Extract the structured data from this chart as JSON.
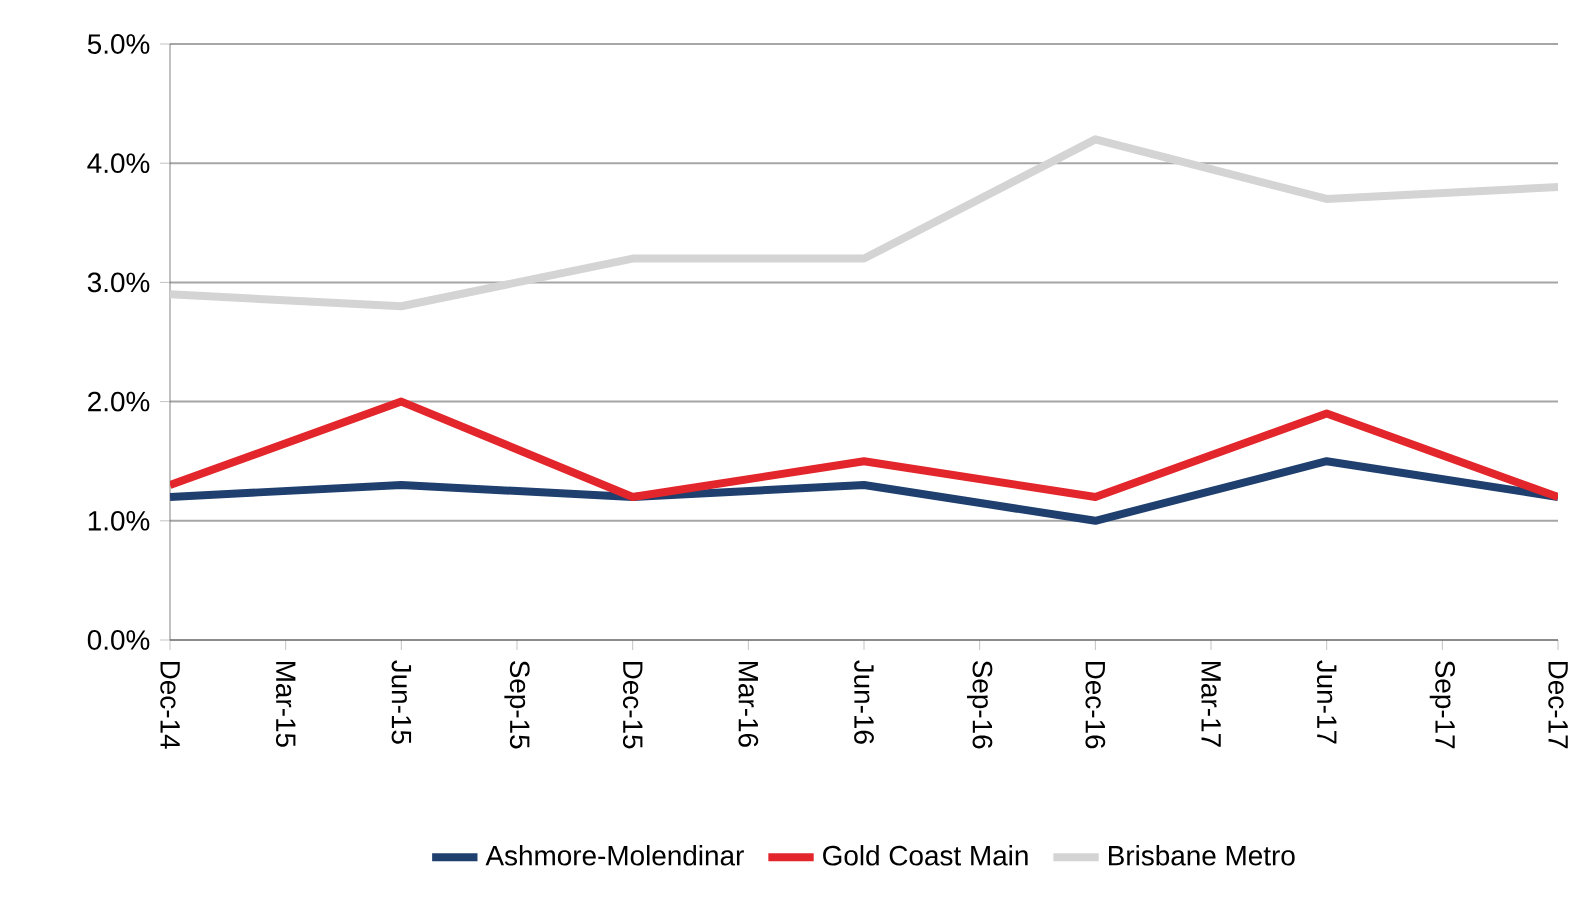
{
  "chart_data": {
    "type": "line",
    "x": [
      "2014-12",
      "2015-06",
      "2015-12",
      "2016-06",
      "2016-12",
      "2017-06",
      "2017-12"
    ],
    "series": [
      {
        "name": "Ashmore-Molendinar",
        "color": "#1f3f6e",
        "values": [
          1.2,
          1.3,
          1.2,
          1.3,
          1.0,
          1.5,
          1.2
        ]
      },
      {
        "name": "Gold Coast Main",
        "color": "#e3262b",
        "values": [
          1.3,
          2.0,
          1.2,
          1.5,
          1.2,
          1.9,
          1.2
        ]
      },
      {
        "name": "Brisbane Metro",
        "color": "#d4d4d4",
        "values": [
          2.9,
          2.8,
          3.2,
          3.2,
          4.2,
          3.7,
          3.8
        ]
      }
    ],
    "xlim": [
      "2014-12",
      "2017-12"
    ],
    "xticks": [
      {
        "value": "2014-12",
        "label": "Dec-14"
      },
      {
        "value": "2015-03",
        "label": "Mar-15"
      },
      {
        "value": "2015-06",
        "label": "Jun-15"
      },
      {
        "value": "2015-09",
        "label": "Sep-15"
      },
      {
        "value": "2015-12",
        "label": "Dec-15"
      },
      {
        "value": "2016-03",
        "label": "Mar-16"
      },
      {
        "value": "2016-06",
        "label": "Jun-16"
      },
      {
        "value": "2016-09",
        "label": "Sep-16"
      },
      {
        "value": "2016-12",
        "label": "Dec-16"
      },
      {
        "value": "2017-03",
        "label": "Mar-17"
      },
      {
        "value": "2017-06",
        "label": "Jun-17"
      },
      {
        "value": "2017-09",
        "label": "Sep-17"
      },
      {
        "value": "2017-12",
        "label": "Dec-17"
      }
    ],
    "ylim": [
      0,
      5
    ],
    "yticks": [
      {
        "value": 0,
        "label": "0.0%"
      },
      {
        "value": 1,
        "label": "1.0%"
      },
      {
        "value": 2,
        "label": "2.0%"
      },
      {
        "value": 3,
        "label": "3.0%"
      },
      {
        "value": 4,
        "label": "4.0%"
      },
      {
        "value": 5,
        "label": "5.0%"
      }
    ],
    "grid": "y",
    "legend": "bottom",
    "marker": "none",
    "line_style": "solid"
  }
}
